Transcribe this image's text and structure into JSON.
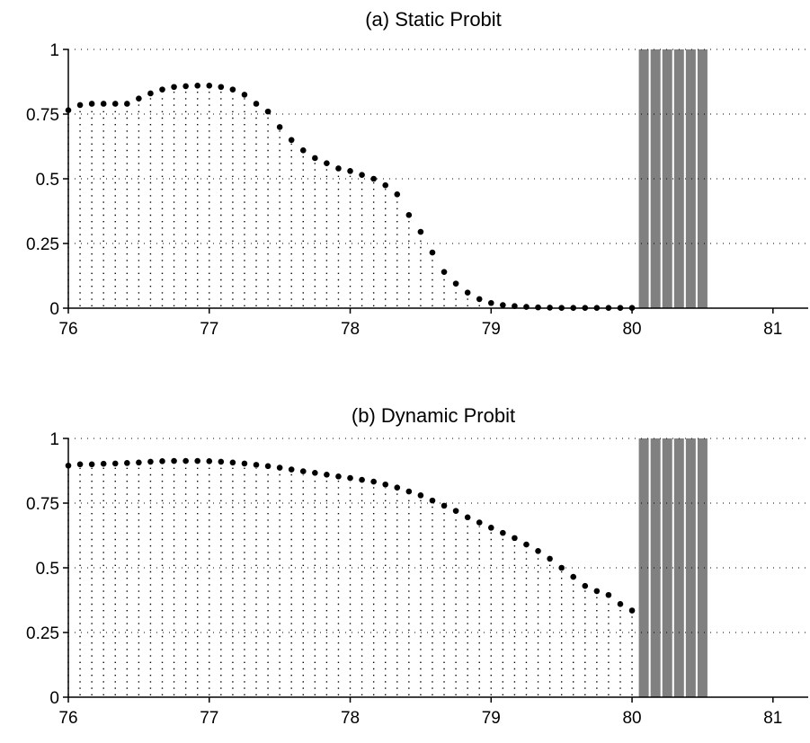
{
  "chart_data": [
    {
      "type": "scatter",
      "title": "(a) Static Probit",
      "xlim": [
        76,
        81.25
      ],
      "ylim": [
        0,
        1
      ],
      "xticks": [
        "76",
        "77",
        "78",
        "79",
        "80",
        "81"
      ],
      "yticks": [
        "0",
        "0.25",
        "0.5",
        "0.75",
        "1"
      ],
      "grid": "dotted horizontal at y ticks",
      "series": [
        {
          "x": [
            76,
            76.0833,
            76.1667,
            76.25,
            76.3333,
            76.4167,
            76.5,
            76.5833,
            76.6667,
            76.75,
            76.8333,
            76.9167,
            77,
            77.0833,
            77.1667,
            77.25,
            77.3333,
            77.4167,
            77.5,
            77.5833,
            77.6667,
            77.75,
            77.8333,
            77.9167,
            78,
            78.0833,
            78.1667,
            78.25,
            78.3333,
            78.4167,
            78.5,
            78.5833,
            78.6667,
            78.75,
            78.8333,
            78.9167,
            79,
            79.0833,
            79.1667,
            79.25,
            79.3333,
            79.4167,
            79.5,
            79.5833,
            79.6667,
            79.75,
            79.8333,
            79.9167,
            80
          ],
          "values": [
            0.765,
            0.785,
            0.79,
            0.79,
            0.79,
            0.79,
            0.81,
            0.83,
            0.845,
            0.855,
            0.858,
            0.86,
            0.86,
            0.855,
            0.845,
            0.825,
            0.79,
            0.76,
            0.7,
            0.65,
            0.61,
            0.58,
            0.56,
            0.54,
            0.53,
            0.515,
            0.5,
            0.475,
            0.44,
            0.36,
            0.295,
            0.215,
            0.14,
            0.095,
            0.06,
            0.035,
            0.02,
            0.012,
            0.008,
            0.005,
            0.003,
            0.002,
            0.001,
            0.001,
            0.001,
            0.001,
            0.001,
            0.001,
            0.001
          ]
        }
      ],
      "shaded_periods": [
        80.0833,
        80.1667,
        80.25,
        80.3333,
        80.4167,
        80.5
      ],
      "shade_color": "#808080"
    },
    {
      "type": "scatter",
      "title": "(b) Dynamic Probit",
      "xlim": [
        76,
        81.25
      ],
      "ylim": [
        0,
        1
      ],
      "xticks": [
        "76",
        "77",
        "78",
        "79",
        "80",
        "81"
      ],
      "yticks": [
        "0",
        "0.25",
        "0.5",
        "0.75",
        "1"
      ],
      "grid": "dotted horizontal at y ticks",
      "series": [
        {
          "x": [
            76,
            76.0833,
            76.1667,
            76.25,
            76.3333,
            76.4167,
            76.5,
            76.5833,
            76.6667,
            76.75,
            76.8333,
            76.9167,
            77,
            77.0833,
            77.1667,
            77.25,
            77.3333,
            77.4167,
            77.5,
            77.5833,
            77.6667,
            77.75,
            77.8333,
            77.9167,
            78,
            78.0833,
            78.1667,
            78.25,
            78.3333,
            78.4167,
            78.5,
            78.5833,
            78.6667,
            78.75,
            78.8333,
            78.9167,
            79,
            79.0833,
            79.1667,
            79.25,
            79.3333,
            79.4167,
            79.5,
            79.5833,
            79.6667,
            79.75,
            79.8333,
            79.9167,
            80
          ],
          "values": [
            0.895,
            0.9,
            0.9,
            0.902,
            0.903,
            0.905,
            0.907,
            0.91,
            0.912,
            0.913,
            0.913,
            0.913,
            0.912,
            0.91,
            0.907,
            0.903,
            0.898,
            0.893,
            0.887,
            0.88,
            0.873,
            0.867,
            0.86,
            0.853,
            0.847,
            0.84,
            0.833,
            0.822,
            0.81,
            0.795,
            0.78,
            0.76,
            0.74,
            0.72,
            0.695,
            0.675,
            0.655,
            0.635,
            0.615,
            0.59,
            0.565,
            0.535,
            0.5,
            0.465,
            0.43,
            0.41,
            0.395,
            0.36,
            0.335
          ]
        }
      ],
      "shaded_periods": [
        80.0833,
        80.1667,
        80.25,
        80.3333,
        80.4167,
        80.5
      ],
      "shade_color": "#808080"
    }
  ]
}
